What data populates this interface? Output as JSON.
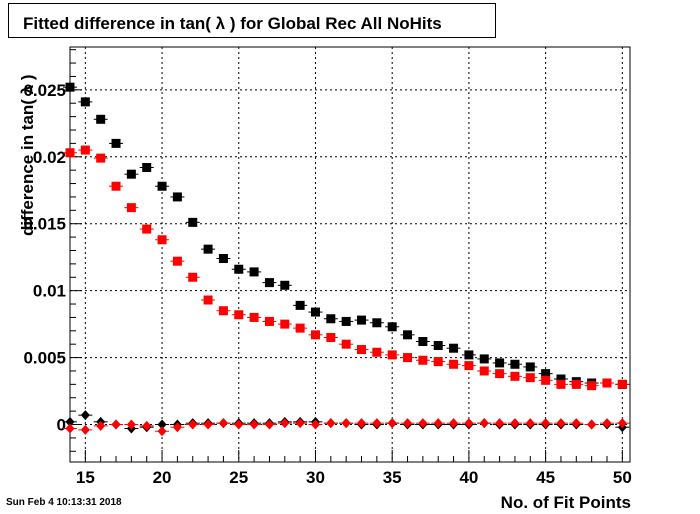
{
  "title": "Fitted difference in tan( λ ) for Global Rec All NoHits",
  "footer_date": "Sun Feb  4 10:13:31 2018",
  "chart_data": {
    "type": "scatter",
    "title": "Fitted difference in tan( λ ) for Global Rec All NoHits",
    "xlabel": "No. of Fit Points",
    "ylabel": "difference in tan( λ )",
    "xlim": [
      14,
      50.5
    ],
    "ylim": [
      -0.0028,
      0.0282
    ],
    "grid": true,
    "legend": "none",
    "x_ticks": [
      15,
      20,
      25,
      30,
      35,
      40,
      45,
      50
    ],
    "x_tick_labels": [
      "15",
      "20",
      "25",
      "30",
      "35",
      "40",
      "45",
      "50"
    ],
    "y_ticks": [
      0,
      0.005,
      0.01,
      0.015,
      0.02,
      0.025
    ],
    "y_tick_labels": [
      "0",
      "0.005",
      "0.01",
      "0.015",
      "0.02",
      "0.025"
    ],
    "x": [
      14,
      15,
      16,
      17,
      18,
      19,
      20,
      21,
      22,
      23,
      24,
      25,
      26,
      27,
      28,
      29,
      30,
      31,
      32,
      33,
      34,
      35,
      36,
      37,
      38,
      39,
      40,
      41,
      42,
      43,
      44,
      45,
      46,
      47,
      48,
      49,
      50
    ],
    "series": [
      {
        "marker": "square",
        "color": "#000000",
        "values": [
          0.0252,
          0.0241,
          0.0228,
          0.021,
          0.0187,
          0.0192,
          0.0178,
          0.017,
          0.0151,
          0.0131,
          0.0124,
          0.0116,
          0.0114,
          0.0106,
          0.0104,
          0.0089,
          0.0084,
          0.0079,
          0.0077,
          0.0078,
          0.0076,
          0.0073,
          0.0067,
          0.0062,
          0.0059,
          0.0057,
          0.0052,
          0.0049,
          0.0046,
          0.0045,
          0.0043,
          0.0038,
          0.0034,
          0.0032,
          0.0031,
          0.0031,
          0.003
        ]
      },
      {
        "marker": "square",
        "color": "#ff0000",
        "values": [
          0.0203,
          0.0205,
          0.0199,
          0.0178,
          0.0162,
          0.0146,
          0.0138,
          0.0122,
          0.011,
          0.0093,
          0.0085,
          0.0082,
          0.008,
          0.0077,
          0.0075,
          0.0072,
          0.0067,
          0.0065,
          0.006,
          0.0056,
          0.0054,
          0.0052,
          0.005,
          0.0048,
          0.0047,
          0.0045,
          0.0044,
          0.004,
          0.0038,
          0.0036,
          0.0035,
          0.0033,
          0.003,
          0.003,
          0.0029,
          0.0031,
          0.003
        ]
      },
      {
        "marker": "diamond",
        "color": "#000000",
        "values": [
          0.0002,
          0.0007,
          0.0002,
          0.0,
          -0.0003,
          -0.0002,
          0.0,
          0.0,
          0.0001,
          0.0001,
          0.0001,
          0.0001,
          0.0001,
          0.0001,
          0.0002,
          0.0002,
          0.0002,
          0.0001,
          0.0001,
          0.0,
          0.0,
          0.0001,
          0.0,
          0.0,
          0.0,
          0.0,
          0.0,
          0.0001,
          0.0,
          0.0,
          0.0,
          0.0,
          0.0,
          0.0,
          0.0,
          0.0,
          -0.0002
        ]
      },
      {
        "marker": "diamond",
        "color": "#ff0000",
        "values": [
          -0.0003,
          -0.0004,
          -0.0001,
          0.0,
          0.0,
          -0.0001,
          -0.0005,
          -0.0002,
          0.0,
          0.0,
          0.0001,
          0.0,
          0.0,
          0.0,
          0.0001,
          0.0001,
          0.0,
          0.0001,
          0.0001,
          0.0001,
          0.0001,
          0.0001,
          0.0001,
          0.0001,
          0.0001,
          0.0001,
          0.0001,
          0.0001,
          0.0001,
          0.0001,
          0.0001,
          0.0001,
          0.0001,
          0.0001,
          0.0,
          0.0001,
          0.0001
        ]
      }
    ]
  }
}
